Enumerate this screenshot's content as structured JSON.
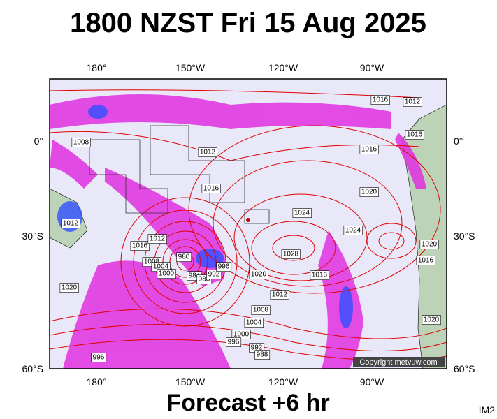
{
  "header": {
    "title": "1800 NZST Fri 15 Aug 2025"
  },
  "map": {
    "top_axis": [
      "180°",
      "150°W",
      "120°W",
      "90°W"
    ],
    "bottom_axis": [
      "180°",
      "150°W",
      "120°W",
      "90°W"
    ],
    "left_axis": [
      "0°",
      "30°S",
      "60°S"
    ],
    "right_axis": [
      "0°",
      "30°S",
      "60°S"
    ],
    "isobar_labels": [
      "1016",
      "1012",
      "1008",
      "1012",
      "1016",
      "1016",
      "1016",
      "1020",
      "1024",
      "1024",
      "1012",
      "1016",
      "1012",
      "1028",
      "1008",
      "1004",
      "1000",
      "980",
      "984",
      "988",
      "992",
      "996",
      "1020",
      "1016",
      "1012",
      "1008",
      "1004",
      "1000",
      "996",
      "992",
      "988",
      "996",
      "1020",
      "1020",
      "1016",
      "1020"
    ],
    "copyright": "Copyright metvuw.com"
  },
  "footer": {
    "forecast": "Forecast +6 hr",
    "code": "IM2"
  }
}
